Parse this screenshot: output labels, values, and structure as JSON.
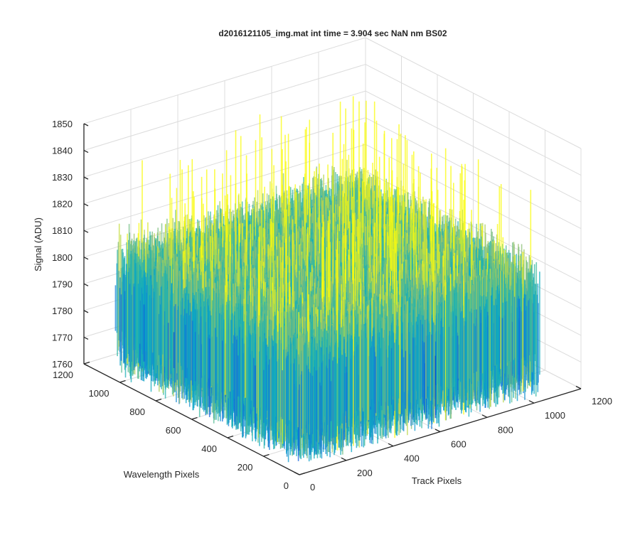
{
  "chart_data": {
    "type": "surface",
    "title": "d2016121105_img.mat int time = 3.904 sec  NaN nm BS02",
    "xlabel": "Track Pixels",
    "ylabel": "Wavelength Pixels",
    "zlabel": "Signal (ADU)",
    "xlim": [
      0,
      1200
    ],
    "ylim": [
      0,
      1200
    ],
    "zlim": [
      1760,
      1850
    ],
    "xticks": [
      "0",
      "200",
      "400",
      "600",
      "800",
      "1000",
      "1200"
    ],
    "yticks": [
      "0",
      "200",
      "400",
      "600",
      "800",
      "1000",
      "1200"
    ],
    "zticks": [
      "1760",
      "1770",
      "1780",
      "1790",
      "1800",
      "1810",
      "1820",
      "1830",
      "1840",
      "1850"
    ],
    "grid": true,
    "colormap": "parula",
    "surface": {
      "x_range": [
        0,
        1024
      ],
      "y_range": [
        0,
        1024
      ],
      "mean_signal": 1790,
      "noise_spread": 14,
      "peak_signal": 1846
    }
  }
}
